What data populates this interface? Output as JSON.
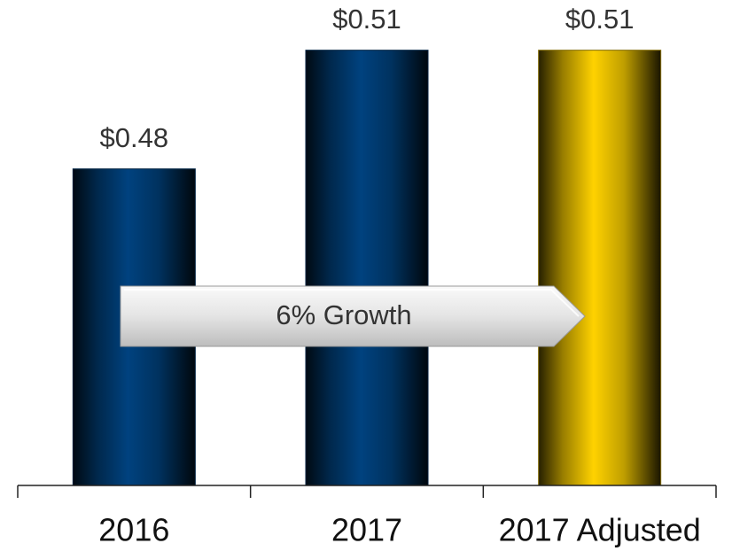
{
  "chart_data": {
    "type": "bar",
    "categories": [
      "2016",
      "2017",
      "2017 Adjusted"
    ],
    "values": [
      0.48,
      0.51,
      0.51
    ],
    "value_labels": [
      "$0.48",
      "$0.51",
      "$0.51"
    ],
    "colors": [
      "#00427f",
      "#00427f",
      "#ffd200"
    ],
    "ylim": [
      0.4,
      0.52
    ],
    "annotation": "6% Growth"
  }
}
